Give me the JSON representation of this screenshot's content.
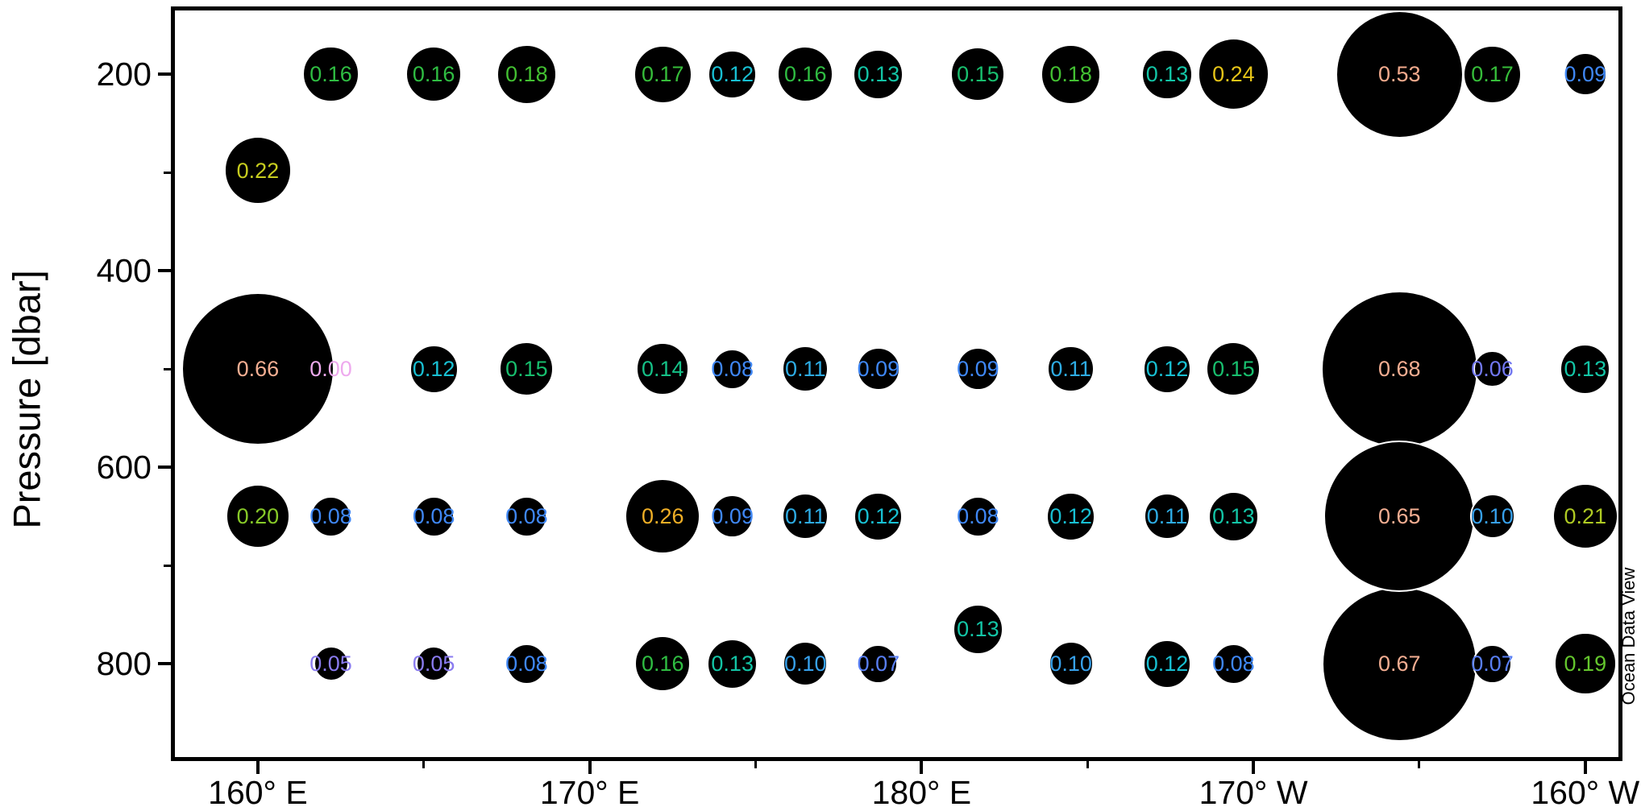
{
  "chart_data": {
    "type": "scatter",
    "subtype": "bubble",
    "title": "",
    "xlabel": "",
    "ylabel": "Pressure [dbar]",
    "watermark": "Ocean Data View",
    "background": "#ffffff",
    "bubble_fill": "#000000",
    "bubble_outline": "#ffffff",
    "size_scale": {
      "radius_base_px": 16,
      "radius_per_value_px": 120
    },
    "x_axis": {
      "unit": "longitude_deg_east",
      "range": [
        157.5,
        201.0
      ],
      "major_ticks": [
        {
          "value": 160,
          "label": "160° E"
        },
        {
          "value": 170,
          "label": "170° E"
        },
        {
          "value": 180,
          "label": "180° E"
        },
        {
          "value": 190,
          "label": "170° W"
        },
        {
          "value": 200,
          "label": "160° W"
        }
      ],
      "minor_ticks": [
        165,
        175,
        185,
        195
      ]
    },
    "y_axis": {
      "unit": "dbar",
      "range": [
        135,
        895
      ],
      "major_ticks": [
        {
          "value": 200,
          "label": "200"
        },
        {
          "value": 400,
          "label": "400"
        },
        {
          "value": 600,
          "label": "600"
        },
        {
          "value": 800,
          "label": "800"
        }
      ],
      "minor_ticks": [
        300,
        500,
        700
      ]
    },
    "value_range": [
      0.0,
      0.68
    ],
    "points": [
      {
        "lon": 162.2,
        "pressure": 200,
        "value": 0.16,
        "color": "#2fbd42"
      },
      {
        "lon": 165.3,
        "pressure": 200,
        "value": 0.16,
        "color": "#2fbd42"
      },
      {
        "lon": 168.1,
        "pressure": 200,
        "value": 0.18,
        "color": "#43c032"
      },
      {
        "lon": 172.2,
        "pressure": 200,
        "value": 0.17,
        "color": "#36bd3a"
      },
      {
        "lon": 174.3,
        "pressure": 200,
        "value": 0.12,
        "color": "#18c0d3"
      },
      {
        "lon": 176.5,
        "pressure": 200,
        "value": 0.16,
        "color": "#2fbd42"
      },
      {
        "lon": 178.7,
        "pressure": 200,
        "value": 0.13,
        "color": "#13c5a6"
      },
      {
        "lon": 181.7,
        "pressure": 200,
        "value": 0.15,
        "color": "#18bf6e"
      },
      {
        "lon": 184.5,
        "pressure": 200,
        "value": 0.18,
        "color": "#43c032"
      },
      {
        "lon": 187.4,
        "pressure": 200,
        "value": 0.13,
        "color": "#13c5a6"
      },
      {
        "lon": 189.4,
        "pressure": 200,
        "value": 0.24,
        "color": "#e6c418"
      },
      {
        "lon": 194.4,
        "pressure": 200,
        "value": 0.53,
        "color": "#f3aa8d"
      },
      {
        "lon": 197.2,
        "pressure": 200,
        "value": 0.17,
        "color": "#36bd3a"
      },
      {
        "lon": 200.0,
        "pressure": 200,
        "value": 0.09,
        "color": "#3f87f5"
      },
      {
        "lon": 160.0,
        "pressure": 298,
        "value": 0.22,
        "color": "#c7cd1f"
      },
      {
        "lon": 160.0,
        "pressure": 500,
        "value": 0.66,
        "color": "#f4ae92"
      },
      {
        "lon": 162.2,
        "pressure": 500,
        "value": 0.0,
        "color": "#eeaaee"
      },
      {
        "lon": 165.3,
        "pressure": 500,
        "value": 0.12,
        "color": "#18c0d3"
      },
      {
        "lon": 168.1,
        "pressure": 500,
        "value": 0.15,
        "color": "#18bf6e"
      },
      {
        "lon": 172.2,
        "pressure": 500,
        "value": 0.14,
        "color": "#15c187"
      },
      {
        "lon": 174.3,
        "pressure": 500,
        "value": 0.08,
        "color": "#3f87f5"
      },
      {
        "lon": 176.5,
        "pressure": 500,
        "value": 0.11,
        "color": "#2eace4"
      },
      {
        "lon": 178.7,
        "pressure": 500,
        "value": 0.09,
        "color": "#3f87f5"
      },
      {
        "lon": 181.7,
        "pressure": 500,
        "value": 0.09,
        "color": "#3f87f5"
      },
      {
        "lon": 184.5,
        "pressure": 500,
        "value": 0.11,
        "color": "#2eace4"
      },
      {
        "lon": 187.4,
        "pressure": 500,
        "value": 0.12,
        "color": "#18c0d3"
      },
      {
        "lon": 189.4,
        "pressure": 500,
        "value": 0.15,
        "color": "#18bf6e"
      },
      {
        "lon": 194.4,
        "pressure": 500,
        "value": 0.68,
        "color": "#f4ae92"
      },
      {
        "lon": 197.2,
        "pressure": 500,
        "value": 0.06,
        "color": "#7278f2"
      },
      {
        "lon": 200.0,
        "pressure": 500,
        "value": 0.13,
        "color": "#13c5a6"
      },
      {
        "lon": 160.0,
        "pressure": 650,
        "value": 0.2,
        "color": "#87c928"
      },
      {
        "lon": 162.2,
        "pressure": 650,
        "value": 0.08,
        "color": "#3f87f5"
      },
      {
        "lon": 165.3,
        "pressure": 650,
        "value": 0.08,
        "color": "#3f87f5"
      },
      {
        "lon": 168.1,
        "pressure": 650,
        "value": 0.08,
        "color": "#3f87f5"
      },
      {
        "lon": 172.2,
        "pressure": 650,
        "value": 0.26,
        "color": "#f0af26"
      },
      {
        "lon": 174.3,
        "pressure": 650,
        "value": 0.09,
        "color": "#3f87f5"
      },
      {
        "lon": 176.5,
        "pressure": 650,
        "value": 0.11,
        "color": "#2eace4"
      },
      {
        "lon": 178.7,
        "pressure": 650,
        "value": 0.12,
        "color": "#18c0d3"
      },
      {
        "lon": 181.7,
        "pressure": 650,
        "value": 0.08,
        "color": "#3f87f5"
      },
      {
        "lon": 184.5,
        "pressure": 650,
        "value": 0.12,
        "color": "#18c0d3"
      },
      {
        "lon": 187.4,
        "pressure": 650,
        "value": 0.11,
        "color": "#2eace4"
      },
      {
        "lon": 189.4,
        "pressure": 650,
        "value": 0.13,
        "color": "#13c5a6"
      },
      {
        "lon": 194.4,
        "pressure": 650,
        "value": 0.65,
        "color": "#f4ae92"
      },
      {
        "lon": 197.2,
        "pressure": 650,
        "value": 0.1,
        "color": "#37a1ec"
      },
      {
        "lon": 200.0,
        "pressure": 650,
        "value": 0.21,
        "color": "#afcb23"
      },
      {
        "lon": 162.2,
        "pressure": 800,
        "value": 0.05,
        "color": "#8a7bf0"
      },
      {
        "lon": 165.3,
        "pressure": 800,
        "value": 0.05,
        "color": "#8a7bf0"
      },
      {
        "lon": 168.1,
        "pressure": 800,
        "value": 0.08,
        "color": "#3f87f5"
      },
      {
        "lon": 172.2,
        "pressure": 800,
        "value": 0.16,
        "color": "#2fbd42"
      },
      {
        "lon": 174.3,
        "pressure": 800,
        "value": 0.13,
        "color": "#13c5a6"
      },
      {
        "lon": 176.5,
        "pressure": 800,
        "value": 0.1,
        "color": "#37a1ec"
      },
      {
        "lon": 178.7,
        "pressure": 800,
        "value": 0.07,
        "color": "#597ff4"
      },
      {
        "lon": 181.7,
        "pressure": 765,
        "value": 0.13,
        "color": "#13c5a6"
      },
      {
        "lon": 184.5,
        "pressure": 800,
        "value": 0.1,
        "color": "#37a1ec"
      },
      {
        "lon": 187.4,
        "pressure": 800,
        "value": 0.12,
        "color": "#18c0d3"
      },
      {
        "lon": 189.4,
        "pressure": 800,
        "value": 0.08,
        "color": "#3f87f5"
      },
      {
        "lon": 194.4,
        "pressure": 800,
        "value": 0.67,
        "color": "#f4ae92"
      },
      {
        "lon": 197.2,
        "pressure": 800,
        "value": 0.07,
        "color": "#597ff4"
      },
      {
        "lon": 200.0,
        "pressure": 800,
        "value": 0.19,
        "color": "#64c62d"
      }
    ]
  }
}
